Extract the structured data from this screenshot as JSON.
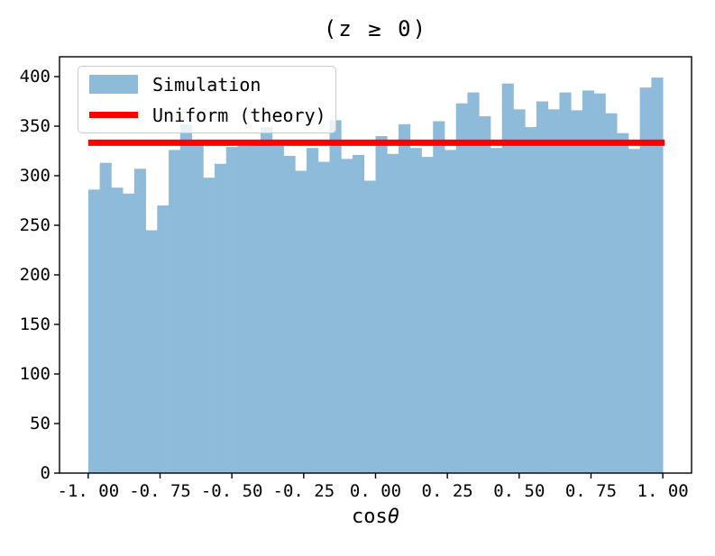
{
  "chart_data": {
    "type": "histogram",
    "title": "(z ≥ 0)",
    "xlabel": {
      "prefix": "cos",
      "symbol": "θ"
    },
    "ylabel": "",
    "xlim": [
      -1.1,
      1.1
    ],
    "ylim": [
      0,
      420
    ],
    "grid": false,
    "legend_position": "upper-left",
    "x_ticks": {
      "values": [
        -1.0,
        -0.75,
        -0.5,
        -0.25,
        0.0,
        0.25,
        0.5,
        0.75,
        1.0
      ],
      "labels": [
        "-1. 00",
        "-0. 75",
        "-0. 50",
        "-0. 25",
        "0. 00",
        "0. 25",
        "0. 50",
        "0. 75",
        "1. 00"
      ]
    },
    "y_ticks": {
      "values": [
        0,
        50,
        100,
        150,
        200,
        250,
        300,
        350,
        400
      ],
      "labels": [
        "0",
        "50",
        "100",
        "150",
        "200",
        "250",
        "300",
        "350",
        "400"
      ]
    },
    "histogram": {
      "name": "Simulation",
      "color": "#8fbbda",
      "bin_start": -1.0,
      "bin_width": 0.04,
      "bin_count": 50,
      "counts": [
        286,
        313,
        288,
        282,
        307,
        245,
        270,
        326,
        352,
        335,
        298,
        312,
        329,
        330,
        331,
        349,
        330,
        320,
        305,
        328,
        314,
        356,
        317,
        321,
        295,
        340,
        322,
        352,
        328,
        319,
        355,
        326,
        373,
        384,
        360,
        328,
        393,
        367,
        349,
        375,
        367,
        384,
        366,
        386,
        383,
        363,
        343,
        327,
        389,
        399
      ]
    },
    "reference_line": {
      "name": "Uniform (theory)",
      "color": "#ff0000",
      "value": 333.3,
      "x_range": [
        -1.0,
        1.0
      ]
    }
  },
  "legend": {
    "items": [
      {
        "label": "Simulation",
        "swatch": "patch",
        "color": "#8fbbda"
      },
      {
        "label": "Uniform (theory)",
        "swatch": "line",
        "color": "#ff0000"
      }
    ]
  }
}
